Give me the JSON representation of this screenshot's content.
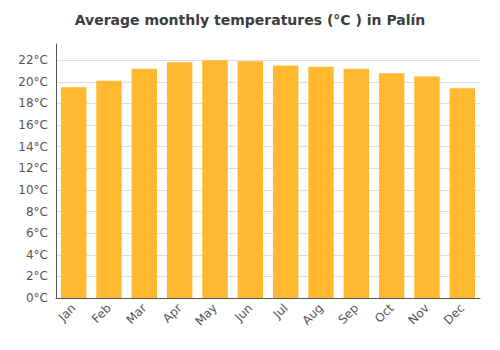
{
  "chart_data": {
    "type": "bar",
    "title": "Average monthly temperatures (°C ) in Palín",
    "categories": [
      "Jan",
      "Feb",
      "Mar",
      "Apr",
      "May",
      "Jun",
      "Jul",
      "Aug",
      "Sep",
      "Oct",
      "Nov",
      "Dec"
    ],
    "values": [
      19.5,
      20.1,
      21.2,
      21.8,
      22.0,
      21.9,
      21.5,
      21.4,
      21.2,
      20.8,
      20.5,
      19.4
    ],
    "color": "#FFB830",
    "ylim": [
      0,
      23.5
    ],
    "yticks": [
      {
        "value": 0,
        "label": "0°C"
      },
      {
        "value": 2,
        "label": "2°C"
      },
      {
        "value": 4,
        "label": "4°C"
      },
      {
        "value": 6,
        "label": "6°C"
      },
      {
        "value": 8,
        "label": "8°C"
      },
      {
        "value": 10,
        "label": "10°C"
      },
      {
        "value": 12,
        "label": "12°C"
      },
      {
        "value": 14,
        "label": "14°C"
      },
      {
        "value": 16,
        "label": "16°C"
      },
      {
        "value": 18,
        "label": "18°C"
      },
      {
        "value": 20,
        "label": "20°C"
      },
      {
        "value": 22,
        "label": "22°C"
      }
    ],
    "grid": true
  }
}
